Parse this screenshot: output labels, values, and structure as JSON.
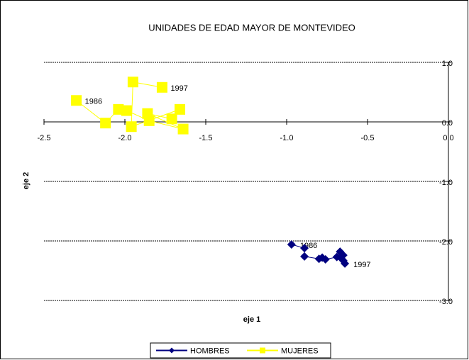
{
  "chart_data": {
    "type": "line",
    "title": "UNIDADES DE EDAD MAYOR DE MONTEVIDEO",
    "xlabel": "eje 1",
    "ylabel": "eje 2",
    "xlim": [
      -2.5,
      0
    ],
    "ylim": [
      -3,
      1
    ],
    "xticks": [
      -2.5,
      {
        "value": -2,
        "label": "-2.0"
      },
      -1.5,
      {
        "value": -1,
        "label": "-1.0"
      },
      -0.5,
      {
        "value": 0,
        "label": "0.0"
      }
    ],
    "yticks": [
      {
        "value": 1,
        "label": "1.0"
      },
      {
        "value": 0,
        "label": "0.0"
      },
      {
        "value": -1,
        "label": "-1.0"
      },
      {
        "value": -2,
        "label": "-2.0"
      },
      {
        "value": -3,
        "label": "-3.0"
      }
    ],
    "grid": true,
    "legend": "bottom",
    "series": [
      {
        "name": "HOMBRES",
        "color": "#000080",
        "marker": "diamond",
        "x": [
          -0.97,
          -0.89,
          -0.89,
          -0.8,
          -0.78,
          -0.76,
          -0.69,
          -0.67,
          -0.65,
          -0.66,
          -0.65,
          -0.64
        ],
        "values": [
          -2.06,
          -2.12,
          -2.26,
          -2.3,
          -2.28,
          -2.31,
          -2.27,
          -2.18,
          -2.24,
          -2.3,
          -2.33,
          -2.38
        ],
        "point_labels": [
          "1986",
          null,
          null,
          null,
          null,
          null,
          null,
          null,
          null,
          null,
          null,
          "1997"
        ]
      },
      {
        "name": "MUJERES",
        "color": "#ffff00",
        "marker": "square",
        "x": [
          -2.3,
          -2.12,
          -2.04,
          -1.99,
          -1.85,
          -1.64,
          -1.86,
          -1.71,
          -1.66,
          -1.96,
          -1.95,
          -1.77
        ],
        "values": [
          0.36,
          -0.02,
          0.21,
          0.19,
          0.02,
          -0.12,
          0.14,
          0.05,
          0.21,
          -0.08,
          0.67,
          0.58
        ],
        "point_labels": [
          "1986",
          null,
          null,
          null,
          null,
          null,
          null,
          null,
          null,
          null,
          null,
          "1997"
        ]
      }
    ]
  }
}
